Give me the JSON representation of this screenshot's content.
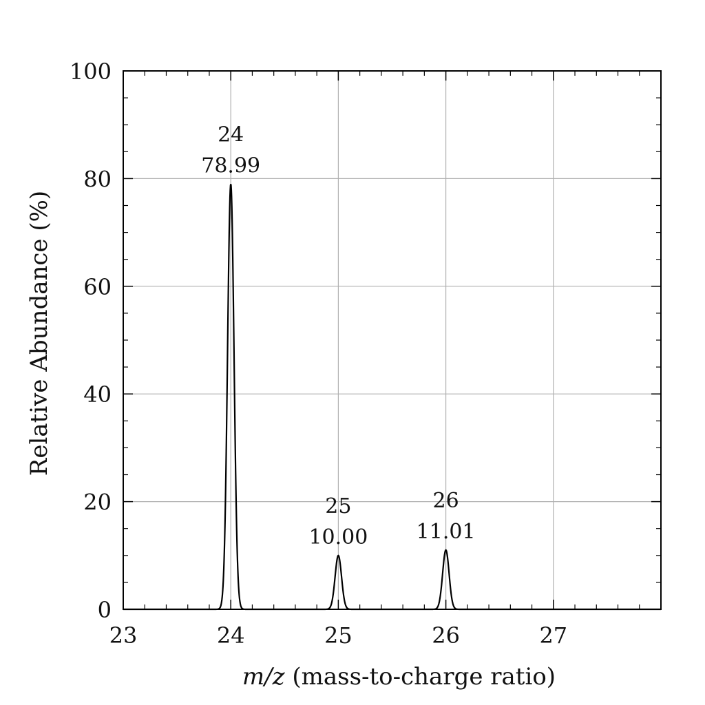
{
  "chart_data": {
    "type": "line",
    "xlabel_math": "m/z",
    "xlabel_text": " (mass-to-charge ratio)",
    "ylabel": "Relative Abundance (%)",
    "xlim": [
      23,
      28
    ],
    "ylim": [
      0,
      100
    ],
    "x_ticks": [
      23,
      24,
      25,
      26,
      27
    ],
    "y_ticks": [
      0,
      20,
      40,
      60,
      80,
      100
    ],
    "grid": true,
    "series": [
      {
        "peaks": [
          {
            "x": 24,
            "y": 78.99,
            "mass_label": "24",
            "value_label": "78.99"
          },
          {
            "x": 25,
            "y": 10.0,
            "mass_label": "25",
            "value_label": "10.00"
          },
          {
            "x": 26,
            "y": 11.01,
            "mass_label": "26",
            "value_label": "11.01"
          }
        ]
      }
    ],
    "colors": {
      "line": "#000000",
      "grid": "#b0b0b0",
      "frame": "#000000"
    }
  }
}
